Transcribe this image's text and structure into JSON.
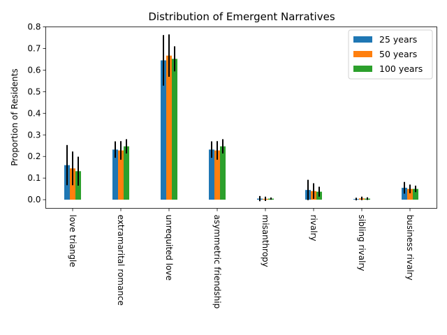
{
  "chart_data": {
    "type": "bar",
    "title": "Distribution of Emergent Narratives",
    "xlabel": "",
    "ylabel": "Proportion of Residents",
    "ylim": [
      -0.04,
      0.8
    ],
    "yticks": [
      "0.0",
      "0.1",
      "0.2",
      "0.3",
      "0.4",
      "0.5",
      "0.6",
      "0.7",
      "0.8"
    ],
    "categories": [
      "love triangle",
      "extramarital romance",
      "unrequited love",
      "asymmetric friendship",
      "misanthropy",
      "rivalry",
      "sibling rivalry",
      "business rivalry"
    ],
    "series": [
      {
        "name": "25 years",
        "color": "#1f77b4",
        "values": [
          0.16,
          0.232,
          0.645,
          0.232,
          0.005,
          0.045,
          0.003,
          0.055
        ],
        "errors": [
          0.093,
          0.038,
          0.117,
          0.038,
          0.012,
          0.047,
          0.006,
          0.027
        ]
      },
      {
        "name": "50 years",
        "color": "#ff7f0e",
        "values": [
          0.145,
          0.228,
          0.667,
          0.228,
          0.004,
          0.04,
          0.006,
          0.05
        ],
        "errors": [
          0.078,
          0.043,
          0.098,
          0.043,
          0.01,
          0.036,
          0.008,
          0.02
        ]
      },
      {
        "name": "100 years",
        "color": "#2ca02c",
        "values": [
          0.132,
          0.247,
          0.652,
          0.247,
          0.005,
          0.037,
          0.005,
          0.05
        ],
        "errors": [
          0.067,
          0.033,
          0.058,
          0.033,
          0.005,
          0.023,
          0.006,
          0.015
        ]
      }
    ],
    "legend": {
      "placement": "top-right"
    },
    "grid": false
  }
}
